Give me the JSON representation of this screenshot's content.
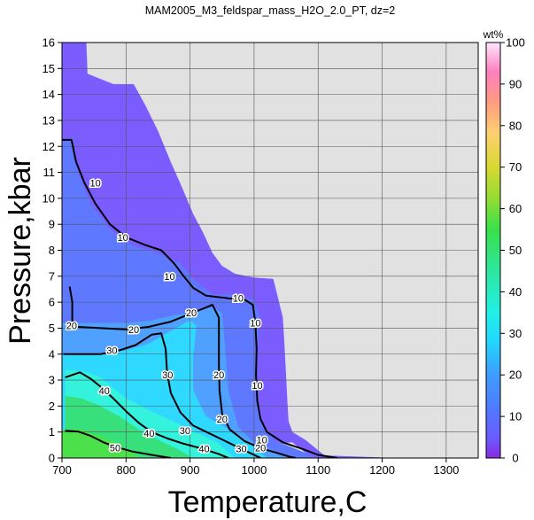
{
  "chart_data": {
    "type": "heatmap",
    "title": "MAM2005_M3_feldspar_mass_H2O_2.0_PT, dz=2",
    "xlabel": "Temperature,C",
    "ylabel": "Pressure,kbar",
    "xlim": [
      700,
      1350
    ],
    "ylim": [
      0,
      16
    ],
    "x_ticks": [
      "700",
      "800",
      "900",
      "1000",
      "1100",
      "1200",
      "1300"
    ],
    "y_ticks": [
      "0",
      "1",
      "2",
      "3",
      "4",
      "5",
      "6",
      "7",
      "8",
      "9",
      "10",
      "11",
      "12",
      "13",
      "14",
      "15",
      "16"
    ],
    "grid": true,
    "colorbar": {
      "label": "wt%",
      "range": [
        0,
        100
      ],
      "ticks": [
        "0",
        "10",
        "20",
        "30",
        "40",
        "50",
        "60",
        "70",
        "80",
        "90",
        "100"
      ],
      "stops": [
        {
          "value": 0,
          "color": "#8a2be2"
        },
        {
          "value": 5,
          "color": "#6a5cff"
        },
        {
          "value": 12,
          "color": "#4f7bff"
        },
        {
          "value": 20,
          "color": "#3f9cff"
        },
        {
          "value": 28,
          "color": "#22d6ff"
        },
        {
          "value": 35,
          "color": "#22f0e6"
        },
        {
          "value": 45,
          "color": "#2ee6a0"
        },
        {
          "value": 55,
          "color": "#39e04a"
        },
        {
          "value": 62,
          "color": "#8fdc35"
        },
        {
          "value": 70,
          "color": "#d8d832"
        },
        {
          "value": 78,
          "color": "#ffd070"
        },
        {
          "value": 86,
          "color": "#ff9a82"
        },
        {
          "value": 93,
          "color": "#ff7fbf"
        },
        {
          "value": 100,
          "color": "#ffe6ff"
        }
      ]
    },
    "no_data_color": "#e1e1e1",
    "colored_region": [
      [
        700,
        16
      ],
      [
        735,
        16
      ],
      [
        735,
        16
      ],
      [
        738,
        16
      ],
      [
        740,
        14.8
      ],
      [
        775,
        14.8
      ],
      [
        780,
        14.4
      ],
      [
        812,
        14.4
      ],
      [
        830,
        13.6
      ],
      [
        850,
        12.6
      ],
      [
        870,
        11.4
      ],
      [
        888,
        10.4
      ],
      [
        905,
        9.4
      ],
      [
        920,
        8.7
      ],
      [
        935,
        7.9
      ],
      [
        950,
        7.4
      ],
      [
        970,
        7.1
      ],
      [
        1000,
        6.95
      ],
      [
        1030,
        6.9
      ],
      [
        1035,
        6.7
      ],
      [
        1040,
        6.5
      ],
      [
        1045,
        5.4
      ],
      [
        1048,
        4.3
      ],
      [
        1050,
        3.2
      ],
      [
        1052,
        2.2
      ],
      [
        1054,
        1.4
      ],
      [
        1060,
        1
      ],
      [
        1080,
        0.7
      ],
      [
        1100,
        0.3
      ],
      [
        1110,
        0.1
      ],
      [
        1200,
        0.02
      ],
      [
        1200,
        0
      ],
      [
        700,
        0
      ]
    ],
    "color_bands": [
      {
        "color": "#7b5cff",
        "region": [
          [
            700,
            16
          ],
          [
            740,
            16
          ],
          [
            740,
            14.8
          ],
          [
            780,
            14.4
          ],
          [
            812,
            14.4
          ],
          [
            830,
            13.6
          ],
          [
            850,
            12.6
          ],
          [
            870,
            11.4
          ],
          [
            888,
            10.4
          ],
          [
            905,
            9.4
          ],
          [
            920,
            8.7
          ],
          [
            935,
            7.9
          ],
          [
            950,
            7.4
          ],
          [
            970,
            7.1
          ],
          [
            1000,
            6.95
          ],
          [
            1030,
            6.9
          ],
          [
            1045,
            5.4
          ],
          [
            1054,
            1.4
          ],
          [
            1100,
            0.3
          ],
          [
            1200,
            0.02
          ],
          [
            1200,
            0
          ],
          [
            1090,
            0
          ],
          [
            1060,
            0.6
          ],
          [
            700,
            0
          ]
        ]
      },
      {
        "color": "#5e78ff",
        "region": [
          [
            700,
            12.3
          ],
          [
            718,
            12.3
          ],
          [
            725,
            11
          ],
          [
            745,
            9.8
          ],
          [
            775,
            8.8
          ],
          [
            810,
            8.2
          ],
          [
            850,
            7.9
          ],
          [
            885,
            7.5
          ],
          [
            905,
            6.9
          ],
          [
            935,
            6.3
          ],
          [
            970,
            6.3
          ],
          [
            1000,
            6.1
          ],
          [
            1010,
            5.4
          ],
          [
            1005,
            4.2
          ],
          [
            1005,
            2.8
          ],
          [
            1008,
            1.5
          ],
          [
            1030,
            0.7
          ],
          [
            1060,
            0.4
          ],
          [
            1090,
            0.1
          ],
          [
            1100,
            0
          ],
          [
            700,
            0
          ]
        ]
      },
      {
        "color": "#4fa0ff",
        "region": [
          [
            700,
            5.2
          ],
          [
            760,
            5.2
          ],
          [
            800,
            5.2
          ],
          [
            840,
            5.3
          ],
          [
            875,
            5.5
          ],
          [
            905,
            5.6
          ],
          [
            935,
            5.8
          ],
          [
            950,
            5.6
          ],
          [
            955,
            4.2
          ],
          [
            960,
            2.6
          ],
          [
            975,
            1.2
          ],
          [
            1000,
            0.6
          ],
          [
            1030,
            0.3
          ],
          [
            1060,
            0
          ],
          [
            700,
            0
          ]
        ]
      },
      {
        "color": "#2fd8ff",
        "region": [
          [
            700,
            4.0
          ],
          [
            760,
            4.0
          ],
          [
            800,
            4.15
          ],
          [
            835,
            4.4
          ],
          [
            870,
            4.9
          ],
          [
            900,
            5.3
          ],
          [
            910,
            5.1
          ],
          [
            905,
            3.9
          ],
          [
            905,
            2.6
          ],
          [
            925,
            1.6
          ],
          [
            965,
            1.05
          ],
          [
            995,
            0.55
          ],
          [
            1020,
            0
          ],
          [
            700,
            0
          ]
        ]
      },
      {
        "color": "#35f2dc",
        "region": [
          [
            705,
            3.4
          ],
          [
            740,
            3.3
          ],
          [
            760,
            3.1
          ],
          [
            780,
            2.7
          ],
          [
            800,
            2.3
          ],
          [
            835,
            1.85
          ],
          [
            870,
            1.45
          ],
          [
            905,
            1.05
          ],
          [
            945,
            0.55
          ],
          [
            960,
            0.2
          ],
          [
            970,
            0
          ],
          [
            705,
            0
          ]
        ]
      },
      {
        "color": "#37e07a",
        "region": [
          [
            705,
            2.4
          ],
          [
            730,
            2.3
          ],
          [
            760,
            2.0
          ],
          [
            790,
            1.6
          ],
          [
            820,
            1.1
          ],
          [
            850,
            0.7
          ],
          [
            880,
            0.35
          ],
          [
            905,
            0
          ],
          [
            705,
            0
          ]
        ]
      },
      {
        "color": "#4ce04a",
        "region": [
          [
            700,
            1.1
          ],
          [
            730,
            1.1
          ],
          [
            760,
            0.85
          ],
          [
            790,
            0.5
          ],
          [
            810,
            0.2
          ],
          [
            820,
            0
          ],
          [
            700,
            0
          ]
        ]
      }
    ],
    "contours": [
      {
        "label": "10",
        "label_at": [
          [
            752,
            10.6
          ],
          [
            795,
            8.5
          ],
          [
            868,
            7.0
          ],
          [
            975,
            6.15
          ],
          [
            1002,
            5.2
          ],
          [
            1005,
            2.8
          ],
          [
            1012,
            0.7
          ]
        ],
        "points": [
          [
            700,
            12.25
          ],
          [
            715,
            12.25
          ],
          [
            722,
            11.4
          ],
          [
            735,
            10.6
          ],
          [
            752,
            9.8
          ],
          [
            775,
            9.0
          ],
          [
            800,
            8.5
          ],
          [
            830,
            8.2
          ],
          [
            855,
            8.0
          ],
          [
            875,
            7.5
          ],
          [
            890,
            7.0
          ],
          [
            905,
            6.55
          ],
          [
            925,
            6.25
          ],
          [
            960,
            6.15
          ],
          [
            985,
            6.1
          ],
          [
            998,
            5.9
          ],
          [
            1002,
            5.2
          ],
          [
            1004,
            4.2
          ],
          [
            1003,
            3.2
          ],
          [
            1005,
            2.2
          ],
          [
            1010,
            1.5
          ],
          [
            1020,
            1.0
          ],
          [
            1045,
            0.6
          ],
          [
            1075,
            0.35
          ],
          [
            1100,
            0.12
          ],
          [
            1130,
            0
          ]
        ]
      },
      {
        "label": "20",
        "label_at": [
          [
            715,
            5.1
          ],
          [
            812,
            4.95
          ],
          [
            902,
            5.6
          ],
          [
            945,
            3.2
          ],
          [
            950,
            1.5
          ],
          [
            1010,
            0.4
          ]
        ],
        "points": [
          [
            712,
            6.6
          ],
          [
            716,
            6.0
          ],
          [
            716,
            5.3
          ],
          [
            725,
            5.05
          ],
          [
            760,
            5.0
          ],
          [
            800,
            4.95
          ],
          [
            835,
            5.05
          ],
          [
            870,
            5.25
          ],
          [
            900,
            5.55
          ],
          [
            920,
            5.75
          ],
          [
            935,
            5.9
          ],
          [
            945,
            5.4
          ],
          [
            945,
            4.6
          ],
          [
            945,
            3.6
          ],
          [
            946,
            2.6
          ],
          [
            950,
            1.7
          ],
          [
            962,
            1.1
          ],
          [
            985,
            0.65
          ],
          [
            1010,
            0.38
          ],
          [
            1035,
            0.2
          ],
          [
            1055,
            0.05
          ],
          [
            1065,
            0
          ]
        ]
      },
      {
        "label": "30",
        "label_at": [
          [
            778,
            4.15
          ],
          [
            865,
            3.2
          ],
          [
            892,
            1.05
          ],
          [
            980,
            0.35
          ]
        ],
        "points": [
          [
            702,
            4.0
          ],
          [
            730,
            4.0
          ],
          [
            760,
            4.0
          ],
          [
            790,
            4.15
          ],
          [
            815,
            4.35
          ],
          [
            840,
            4.75
          ],
          [
            855,
            4.8
          ],
          [
            862,
            4.2
          ],
          [
            864,
            3.3
          ],
          [
            870,
            2.5
          ],
          [
            885,
            1.75
          ],
          [
            905,
            1.25
          ],
          [
            930,
            0.95
          ],
          [
            955,
            0.65
          ],
          [
            980,
            0.35
          ],
          [
            1000,
            0.12
          ],
          [
            1010,
            0
          ]
        ]
      },
      {
        "label": "40",
        "label_at": [
          [
            766,
            2.6
          ],
          [
            836,
            0.95
          ],
          [
            922,
            0.35
          ]
        ],
        "points": [
          [
            705,
            3.1
          ],
          [
            728,
            3.3
          ],
          [
            745,
            3.05
          ],
          [
            760,
            2.75
          ],
          [
            780,
            2.3
          ],
          [
            800,
            1.8
          ],
          [
            820,
            1.35
          ],
          [
            840,
            1.0
          ],
          [
            865,
            0.75
          ],
          [
            890,
            0.55
          ],
          [
            920,
            0.35
          ],
          [
            945,
            0.15
          ],
          [
            960,
            0
          ]
        ]
      },
      {
        "label": "50",
        "label_at": [
          [
            783,
            0.4
          ]
        ],
        "points": [
          [
            705,
            1.05
          ],
          [
            725,
            1.02
          ],
          [
            745,
            0.85
          ],
          [
            765,
            0.6
          ],
          [
            785,
            0.42
          ],
          [
            810,
            0.25
          ],
          [
            840,
            0.12
          ],
          [
            870,
            0
          ]
        ]
      }
    ]
  }
}
